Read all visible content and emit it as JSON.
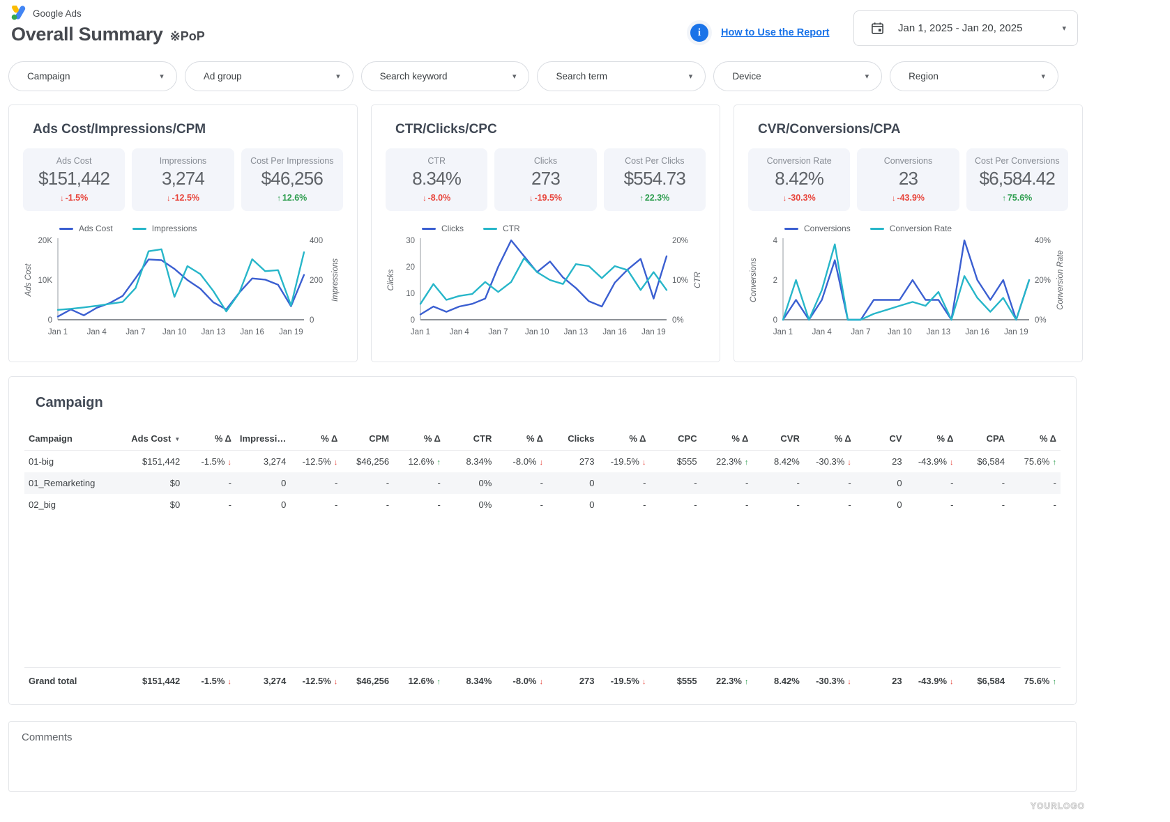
{
  "icons": {
    "trend_down": "↓",
    "trend_up": "↑",
    "chevron_down": "▾",
    "sort_desc": "▼",
    "info": "i"
  },
  "header": {
    "logo_text": "Google Ads",
    "title": "Overall Summary",
    "title_note": "※PoP",
    "help_link": "How to Use the Report",
    "date_range": "Jan 1, 2025 - Jan 20, 2025"
  },
  "filters": [
    {
      "label": "Campaign"
    },
    {
      "label": "Ad group"
    },
    {
      "label": "Search keyword"
    },
    {
      "label": "Search term"
    },
    {
      "label": "Device"
    },
    {
      "label": "Region"
    }
  ],
  "cards": [
    {
      "title": "Ads Cost/Impressions/CPM",
      "kpis": [
        {
          "label": "Ads Cost",
          "value": "$151,442",
          "delta": "-1.5%",
          "trend": "down"
        },
        {
          "label": "Impressions",
          "value": "3,274",
          "delta": "-12.5%",
          "trend": "down"
        },
        {
          "label": "Cost Per Impressions",
          "value": "$46,256",
          "delta": "12.6%",
          "trend": "up"
        }
      ],
      "chart_data": {
        "type": "line",
        "x": [
          "Jan 1",
          "Jan 2",
          "Jan 3",
          "Jan 4",
          "Jan 5",
          "Jan 6",
          "Jan 7",
          "Jan 8",
          "Jan 9",
          "Jan 10",
          "Jan 11",
          "Jan 12",
          "Jan 13",
          "Jan 14",
          "Jan 15",
          "Jan 16",
          "Jan 17",
          "Jan 18",
          "Jan 19",
          "Jan 20"
        ],
        "x_tick_step": 3,
        "left_axis": {
          "label": "Ads Cost",
          "ticks": [
            "0",
            "10K",
            "20K"
          ],
          "max": 20000
        },
        "right_axis": {
          "label": "Impressions",
          "ticks": [
            "0",
            "200",
            "400"
          ],
          "max": 400
        },
        "series": [
          {
            "name": "Ads Cost",
            "axis": "left",
            "color": "#3b5fd1",
            "values": [
              800,
              2600,
              1100,
              3000,
              4200,
              6000,
              10500,
              15200,
              15000,
              12800,
              10000,
              7800,
              4400,
              2600,
              6800,
              10400,
              10100,
              8800,
              3400,
              11300
            ]
          },
          {
            "name": "Impressions",
            "axis": "right",
            "color": "#27b6c9",
            "values": [
              50,
              55,
              62,
              70,
              80,
              90,
              160,
              345,
              355,
              115,
              270,
              230,
              145,
              42,
              135,
              305,
              245,
              250,
              72,
              340
            ]
          }
        ]
      }
    },
    {
      "title": "CTR/Clicks/CPC",
      "kpis": [
        {
          "label": "CTR",
          "value": "8.34%",
          "delta": "-8.0%",
          "trend": "down"
        },
        {
          "label": "Clicks",
          "value": "273",
          "delta": "-19.5%",
          "trend": "down"
        },
        {
          "label": "Cost Per Clicks",
          "value": "$554.73",
          "delta": "22.3%",
          "trend": "up"
        }
      ],
      "chart_data": {
        "type": "line",
        "x": [
          "Jan 1",
          "Jan 2",
          "Jan 3",
          "Jan 4",
          "Jan 5",
          "Jan 6",
          "Jan 7",
          "Jan 8",
          "Jan 9",
          "Jan 10",
          "Jan 11",
          "Jan 12",
          "Jan 13",
          "Jan 14",
          "Jan 15",
          "Jan 16",
          "Jan 17",
          "Jan 18",
          "Jan 19",
          "Jan 20"
        ],
        "x_tick_step": 3,
        "left_axis": {
          "label": "Clicks",
          "ticks": [
            "0",
            "10",
            "20",
            "30"
          ],
          "max": 30
        },
        "right_axis": {
          "label": "CTR",
          "ticks": [
            "0%",
            "10%",
            "20%"
          ],
          "max": 20
        },
        "series": [
          {
            "name": "Clicks",
            "axis": "left",
            "color": "#3b5fd1",
            "values": [
              2,
              5,
              3,
              5,
              6,
              8,
              20,
              30,
              24,
              18,
              22,
              16,
              12,
              7,
              5,
              14,
              19,
              23,
              8,
              24
            ]
          },
          {
            "name": "CTR",
            "axis": "right",
            "color": "#27b6c9",
            "values": [
              4,
              9,
              5,
              6,
              6.5,
              9.5,
              7,
              9.5,
              15.5,
              12,
              10,
              9,
              14,
              13.5,
              10.5,
              13.5,
              12.5,
              7.5,
              12,
              7.5
            ]
          }
        ]
      }
    },
    {
      "title": "CVR/Conversions/CPA",
      "kpis": [
        {
          "label": "Conversion Rate",
          "value": "8.42%",
          "delta": "-30.3%",
          "trend": "down"
        },
        {
          "label": "Conversions",
          "value": "23",
          "delta": "-43.9%",
          "trend": "down"
        },
        {
          "label": "Cost Per Conversions",
          "value": "$6,584.42",
          "delta": "75.6%",
          "trend": "up"
        }
      ],
      "chart_data": {
        "type": "line",
        "x": [
          "Jan 1",
          "Jan 2",
          "Jan 3",
          "Jan 4",
          "Jan 5",
          "Jan 6",
          "Jan 7",
          "Jan 8",
          "Jan 9",
          "Jan 10",
          "Jan 11",
          "Jan 12",
          "Jan 13",
          "Jan 14",
          "Jan 15",
          "Jan 16",
          "Jan 17",
          "Jan 18",
          "Jan 19",
          "Jan 20"
        ],
        "x_tick_step": 3,
        "left_axis": {
          "label": "Conversions",
          "ticks": [
            "0",
            "2",
            "4"
          ],
          "max": 4
        },
        "right_axis": {
          "label": "Conversion Rate",
          "ticks": [
            "0%",
            "20%",
            "40%"
          ],
          "max": 40
        },
        "series": [
          {
            "name": "Conversions",
            "axis": "left",
            "color": "#3b5fd1",
            "values": [
              0,
              1,
              0,
              1,
              3,
              0,
              0,
              1,
              1,
              1,
              2,
              1,
              1,
              0,
              4,
              2,
              1,
              2,
              0,
              2
            ]
          },
          {
            "name": "Conversion Rate",
            "axis": "right",
            "color": "#27b6c9",
            "values": [
              0,
              20,
              0,
              15,
              38,
              0,
              0,
              3,
              5,
              7,
              9,
              7,
              14,
              0,
              22,
              11,
              4,
              11,
              0,
              20
            ]
          }
        ]
      }
    }
  ],
  "table": {
    "title": "Campaign",
    "columns": [
      {
        "label": "Campaign"
      },
      {
        "label": "Ads Cost",
        "sort": "desc"
      },
      {
        "label": "% Δ"
      },
      {
        "label": "Impressi…"
      },
      {
        "label": "% Δ"
      },
      {
        "label": "CPM"
      },
      {
        "label": "% Δ"
      },
      {
        "label": "CTR"
      },
      {
        "label": "% Δ"
      },
      {
        "label": "Clicks"
      },
      {
        "label": "% Δ"
      },
      {
        "label": "CPC"
      },
      {
        "label": "% Δ"
      },
      {
        "label": "CVR"
      },
      {
        "label": "% Δ"
      },
      {
        "label": "CV"
      },
      {
        "label": "% Δ"
      },
      {
        "label": "CPA"
      },
      {
        "label": "% Δ"
      }
    ],
    "rows": [
      {
        "campaign": "01-big",
        "cells": [
          {
            "t": "$151,442"
          },
          {
            "t": "-1.5%",
            "trend": "down"
          },
          {
            "t": "3,274"
          },
          {
            "t": "-12.5%",
            "trend": "down"
          },
          {
            "t": "$46,256"
          },
          {
            "t": "12.6%",
            "trend": "up"
          },
          {
            "t": "8.34%"
          },
          {
            "t": "-8.0%",
            "trend": "down"
          },
          {
            "t": "273"
          },
          {
            "t": "-19.5%",
            "trend": "down"
          },
          {
            "t": "$555"
          },
          {
            "t": "22.3%",
            "trend": "up"
          },
          {
            "t": "8.42%"
          },
          {
            "t": "-30.3%",
            "trend": "down"
          },
          {
            "t": "23"
          },
          {
            "t": "-43.9%",
            "trend": "down"
          },
          {
            "t": "$6,584"
          },
          {
            "t": "75.6%",
            "trend": "up"
          }
        ]
      },
      {
        "campaign": "01_Remarketing",
        "cells": [
          {
            "t": "$0"
          },
          {
            "t": "-"
          },
          {
            "t": "0"
          },
          {
            "t": "-"
          },
          {
            "t": "-"
          },
          {
            "t": "-"
          },
          {
            "t": "0%"
          },
          {
            "t": "-"
          },
          {
            "t": "0"
          },
          {
            "t": "-"
          },
          {
            "t": "-"
          },
          {
            "t": "-"
          },
          {
            "t": "-"
          },
          {
            "t": "-"
          },
          {
            "t": "0"
          },
          {
            "t": "-"
          },
          {
            "t": "-"
          },
          {
            "t": "-"
          }
        ]
      },
      {
        "campaign": "02_big",
        "cells": [
          {
            "t": "$0"
          },
          {
            "t": "-"
          },
          {
            "t": "0"
          },
          {
            "t": "-"
          },
          {
            "t": "-"
          },
          {
            "t": "-"
          },
          {
            "t": "0%"
          },
          {
            "t": "-"
          },
          {
            "t": "0"
          },
          {
            "t": "-"
          },
          {
            "t": "-"
          },
          {
            "t": "-"
          },
          {
            "t": "-"
          },
          {
            "t": "-"
          },
          {
            "t": "0"
          },
          {
            "t": "-"
          },
          {
            "t": "-"
          },
          {
            "t": "-"
          }
        ]
      }
    ],
    "grand_total": {
      "campaign": "Grand total",
      "cells": [
        {
          "t": "$151,442"
        },
        {
          "t": "-1.5%",
          "trend": "down"
        },
        {
          "t": "3,274"
        },
        {
          "t": "-12.5%",
          "trend": "down"
        },
        {
          "t": "$46,256"
        },
        {
          "t": "12.6%",
          "trend": "up"
        },
        {
          "t": "8.34%"
        },
        {
          "t": "-8.0%",
          "trend": "down"
        },
        {
          "t": "273"
        },
        {
          "t": "-19.5%",
          "trend": "down"
        },
        {
          "t": "$555"
        },
        {
          "t": "22.3%",
          "trend": "up"
        },
        {
          "t": "8.42%"
        },
        {
          "t": "-30.3%",
          "trend": "down"
        },
        {
          "t": "23"
        },
        {
          "t": "-43.9%",
          "trend": "down"
        },
        {
          "t": "$6,584"
        },
        {
          "t": "75.6%",
          "trend": "up"
        }
      ]
    }
  },
  "comments": {
    "label": "Comments"
  },
  "watermark": "YOURLOGO"
}
